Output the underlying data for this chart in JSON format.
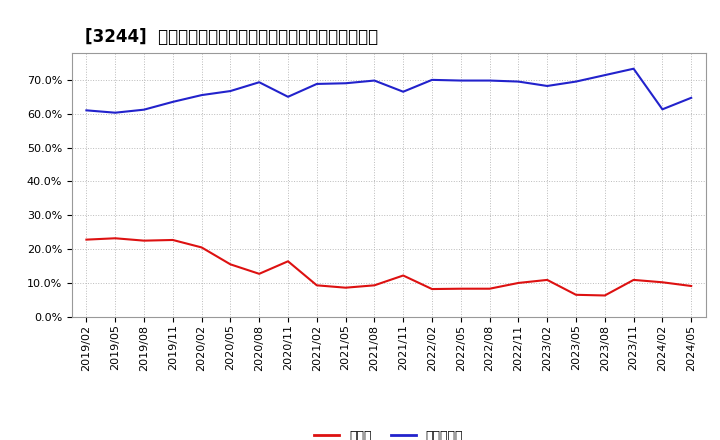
{
  "title": "[3244]  現預金、有利子負債の総資産に対する比率の推移",
  "x_labels": [
    "2019/02",
    "2019/05",
    "2019/08",
    "2019/11",
    "2020/02",
    "2020/05",
    "2020/08",
    "2020/11",
    "2021/02",
    "2021/05",
    "2021/08",
    "2021/11",
    "2022/02",
    "2022/05",
    "2022/08",
    "2022/11",
    "2023/02",
    "2023/05",
    "2023/08",
    "2023/11",
    "2024/02",
    "2024/05"
  ],
  "cash": [
    0.228,
    0.232,
    0.225,
    0.227,
    0.205,
    0.155,
    0.127,
    0.164,
    0.093,
    0.086,
    0.093,
    0.122,
    0.082,
    0.083,
    0.083,
    0.1,
    0.109,
    0.065,
    0.063,
    0.109,
    0.102,
    0.091
  ],
  "interest_bearing_debt": [
    0.61,
    0.603,
    0.612,
    0.635,
    0.655,
    0.667,
    0.693,
    0.65,
    0.688,
    0.69,
    0.698,
    0.665,
    0.7,
    0.698,
    0.698,
    0.695,
    0.682,
    0.695,
    0.714,
    0.733,
    0.613,
    0.647
  ],
  "cash_color": "#dd1111",
  "debt_color": "#2222cc",
  "background_color": "#ffffff",
  "grid_color": "#bbbbbb",
  "ylim": [
    0.0,
    0.78
  ],
  "yticks": [
    0.0,
    0.1,
    0.2,
    0.3,
    0.4,
    0.5,
    0.6,
    0.7
  ],
  "legend_cash": "現預金",
  "legend_debt": "有利子負債",
  "title_fontsize": 12,
  "tick_fontsize": 8,
  "legend_fontsize": 9
}
